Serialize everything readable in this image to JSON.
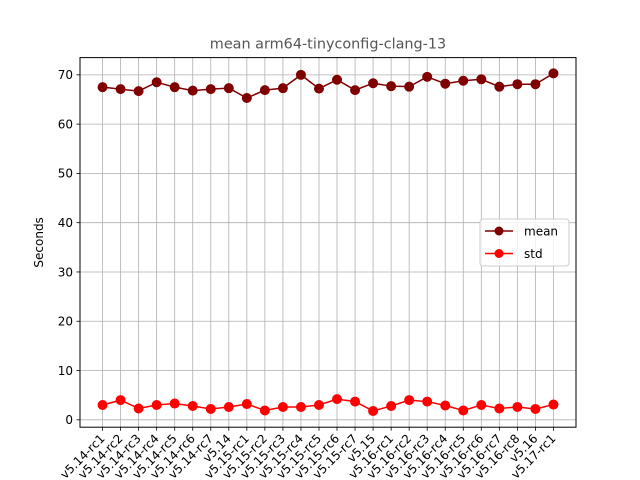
{
  "chart_data": {
    "type": "line",
    "title": "mean arm64-tinyconfig-clang-13",
    "xlabel": "",
    "ylabel": "Seconds",
    "ylim": [
      -1.5,
      73.5
    ],
    "yticks": [
      0,
      10,
      20,
      30,
      40,
      50,
      60,
      70
    ],
    "grid": true,
    "legend_position": "center-right",
    "categories": [
      "v5.14-rc1",
      "v5.14-rc2",
      "v5.14-rc3",
      "v5.14-rc4",
      "v5.14-rc5",
      "v5.14-rc6",
      "v5.14-rc7",
      "v5.14",
      "v5.15-rc1",
      "v5.15-rc2",
      "v5.15-rc3",
      "v5.15-rc4",
      "v5.15-rc5",
      "v5.15-rc6",
      "v5.15-rc7",
      "v5.15",
      "v5.16-rc1",
      "v5.16-rc2",
      "v5.16-rc3",
      "v5.16-rc4",
      "v5.16-rc5",
      "v5.16-rc6",
      "v5.16-rc7",
      "v5.16-rc8",
      "v5.16",
      "v5.17-rc1"
    ],
    "series": [
      {
        "name": "mean",
        "color": "#800000",
        "values": [
          67.5,
          67.1,
          66.7,
          68.5,
          67.5,
          66.8,
          67.1,
          67.3,
          65.3,
          66.9,
          67.3,
          70.0,
          67.2,
          69.0,
          66.9,
          68.3,
          67.7,
          67.6,
          69.6,
          68.2,
          68.8,
          69.1,
          67.6,
          68.1,
          68.1,
          70.3
        ]
      },
      {
        "name": "std",
        "color": "#ff0000",
        "values": [
          3.0,
          4.0,
          2.3,
          3.0,
          3.3,
          2.8,
          2.2,
          2.6,
          3.2,
          1.9,
          2.6,
          2.6,
          3.0,
          4.2,
          3.7,
          1.8,
          2.8,
          4.0,
          3.7,
          2.9,
          1.9,
          3.0,
          2.3,
          2.6,
          2.2,
          3.1
        ]
      }
    ]
  }
}
